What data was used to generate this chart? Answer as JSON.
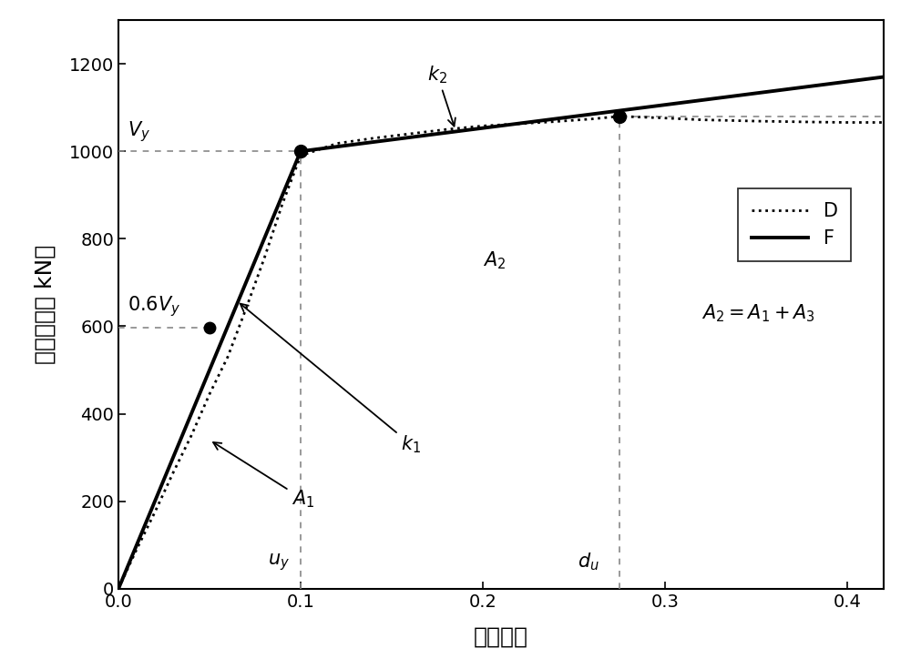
{
  "xlabel": "相对位移",
  "ylabel": "底部剪力（ kN）",
  "xlim": [
    0.0,
    0.42
  ],
  "ylim": [
    0,
    1300
  ],
  "xticks": [
    0.0,
    0.1,
    0.2,
    0.3,
    0.4
  ],
  "yticks": [
    0,
    200,
    400,
    600,
    800,
    1000,
    1200
  ],
  "Vy": 1000,
  "uy": 0.1,
  "du": 0.275,
  "F_points_x": [
    0.0,
    0.1,
    0.42
  ],
  "F_points_y": [
    0,
    1000,
    1170
  ],
  "D_points_x": [
    0.0,
    0.01,
    0.02,
    0.03,
    0.04,
    0.05,
    0.06,
    0.07,
    0.08,
    0.09,
    0.1,
    0.12,
    0.14,
    0.16,
    0.18,
    0.2,
    0.22,
    0.24,
    0.26,
    0.275,
    0.3,
    0.32,
    0.35,
    0.38,
    0.4,
    0.42
  ],
  "D_points_y": [
    0,
    90,
    175,
    265,
    350,
    445,
    530,
    640,
    755,
    880,
    990,
    1018,
    1030,
    1040,
    1050,
    1058,
    1063,
    1068,
    1074,
    1080,
    1076,
    1072,
    1069,
    1067,
    1066,
    1066
  ],
  "point_uy_Vy": [
    0.1,
    1000
  ],
  "point_du": [
    0.275,
    1080
  ],
  "point_06Vy": [
    0.05,
    597
  ],
  "bg_color": "#ffffff",
  "line_color": "#000000",
  "dot_line_color": "#000000",
  "dashed_color": "#888888"
}
